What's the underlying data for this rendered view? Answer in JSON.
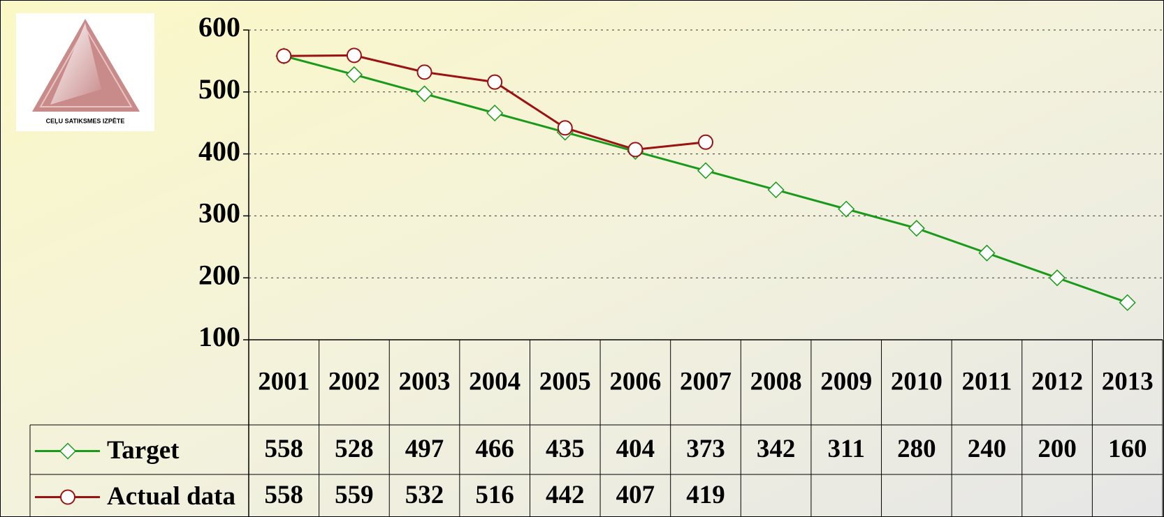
{
  "logo_text": "CEĻU SATIKSMES IZPĒTE",
  "chart_data": {
    "type": "line",
    "categories": [
      "2001",
      "2002",
      "2003",
      "2004",
      "2005",
      "2006",
      "2007",
      "2008",
      "2009",
      "2010",
      "2011",
      "2012",
      "2013"
    ],
    "series": [
      {
        "name": "Target",
        "color": "#1a9a1a",
        "marker": "diamond",
        "values": [
          558,
          528,
          497,
          466,
          435,
          404,
          373,
          342,
          311,
          280,
          240,
          200,
          160
        ]
      },
      {
        "name": "Actual data",
        "color": "#9a1212",
        "marker": "circle",
        "values": [
          558,
          559,
          532,
          516,
          442,
          407,
          419,
          null,
          null,
          null,
          null,
          null,
          null
        ]
      }
    ],
    "ylim": [
      100,
      600
    ],
    "yticks": [
      100,
      200,
      300,
      400,
      500,
      600
    ],
    "grid": true,
    "data_table": true
  }
}
